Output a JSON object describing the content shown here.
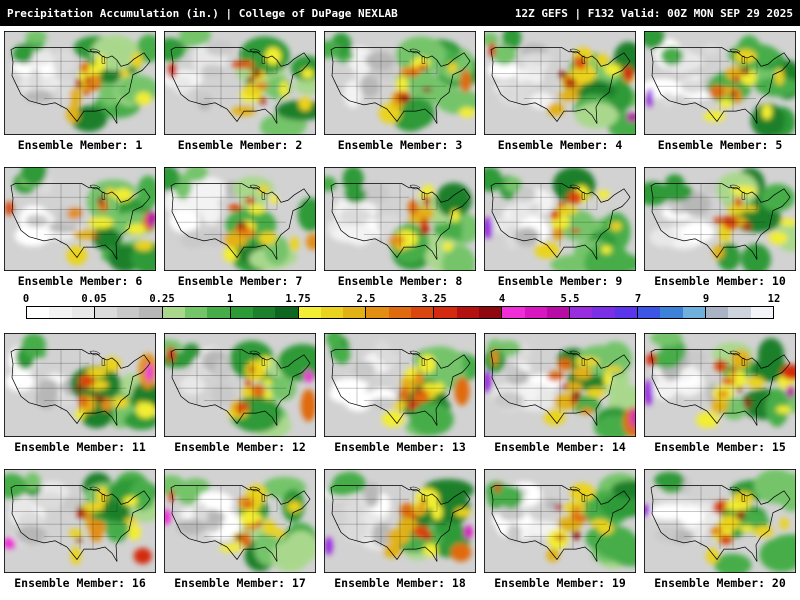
{
  "header": {
    "left": "Precipitation Accumulation (in.) | College of DuPage NEXLAB",
    "right": "12Z GEFS | F132 Valid: 00Z MON SEP 29 2025"
  },
  "panels": {
    "members": [
      "Ensemble Member: 1",
      "Ensemble Member: 2",
      "Ensemble Member: 3",
      "Ensemble Member: 4",
      "Ensemble Member: 5",
      "Ensemble Member: 6",
      "Ensemble Member: 7",
      "Ensemble Member: 8",
      "Ensemble Member: 9",
      "Ensemble Member: 10",
      "Ensemble Member: 11",
      "Ensemble Member: 12",
      "Ensemble Member: 13",
      "Ensemble Member: 14",
      "Ensemble Member: 15",
      "Ensemble Member: 16",
      "Ensemble Member: 17",
      "Ensemble Member: 18",
      "Ensemble Member: 19",
      "Ensemble Member: 20"
    ]
  },
  "colorbar": {
    "ticks": [
      "0",
      "0.05",
      "0.25",
      "1",
      "1.75",
      "2.5",
      "3.25",
      "4",
      "5.5",
      "7",
      "9",
      "12"
    ],
    "colors": [
      "#ffffff",
      "#f3f3f3",
      "#e8e8e8",
      "#dbdbdb",
      "#c9c9c9",
      "#b7b7b7",
      "#a9d88d",
      "#74c46a",
      "#47ad49",
      "#2d9a38",
      "#1c802c",
      "#0e6721",
      "#f2ee33",
      "#ead31f",
      "#e2b115",
      "#e38e12",
      "#e06a10",
      "#d9470e",
      "#d42b10",
      "#b41210",
      "#8f070f",
      "#ef2ed8",
      "#d816c2",
      "#b90ca6",
      "#9a2ce0",
      "#7b30e6",
      "#5b35ea",
      "#3c55e4",
      "#3b82d8",
      "#6fb0dc",
      "#a8b4c4",
      "#cdd4de",
      "#f2f4f7"
    ]
  }
}
